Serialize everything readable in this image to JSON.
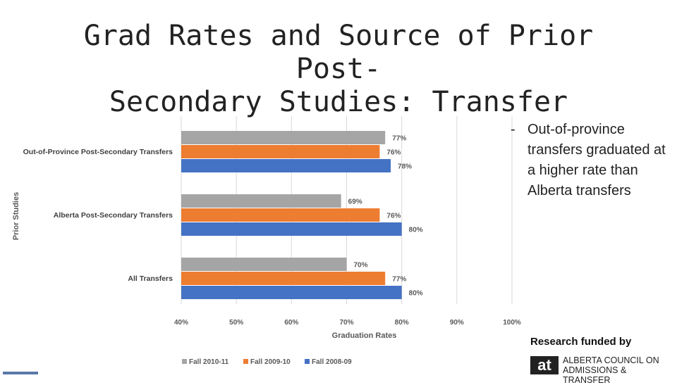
{
  "slide": {
    "title_line1": "Grad Rates and Source of Prior Post-",
    "title_line2": "Secondary Studies: Transfer"
  },
  "bullet": {
    "dash": "-",
    "text": "Out-of-province transfers graduated at a higher rate than Alberta transfers"
  },
  "funding": {
    "label": "Research funded by",
    "org_mark": "at",
    "org_line1": "ALBERTA COUNCIL ON",
    "org_line2": "ADMISSIONS & TRANSFER"
  },
  "colors": {
    "fall_2010_11": "#a5a5a5",
    "fall_2009_10": "#ed7d31",
    "fall_2008_09": "#4472c4"
  },
  "chart_data": {
    "type": "bar",
    "orientation": "horizontal",
    "title": "",
    "xlabel": "Graduation Rates",
    "ylabel": "Prior Studies",
    "xlim": [
      40,
      100
    ],
    "xticks": [
      "40%",
      "50%",
      "60%",
      "70%",
      "80%",
      "90%",
      "100%"
    ],
    "xtick_values": [
      40,
      50,
      60,
      70,
      80,
      90,
      100
    ],
    "legend_position": "bottom",
    "grid": true,
    "categories": [
      "Out-of-Province Post-Secondary Transfers",
      "Alberta Post-Secondary Transfers",
      "All Transfers"
    ],
    "series": [
      {
        "name": "Fall 2010-11",
        "color": "#a5a5a5",
        "values": [
          77,
          69,
          70
        ],
        "labels": [
          "77%",
          "69%",
          "70%"
        ]
      },
      {
        "name": "Fall 2009-10",
        "color": "#ed7d31",
        "values": [
          76,
          76,
          77
        ],
        "labels": [
          "76%",
          "76%",
          "77%"
        ]
      },
      {
        "name": "Fall 2008-09",
        "color": "#4472c4",
        "values": [
          78,
          80,
          80
        ],
        "labels": [
          "78%",
          "80%",
          "80%"
        ]
      }
    ]
  }
}
